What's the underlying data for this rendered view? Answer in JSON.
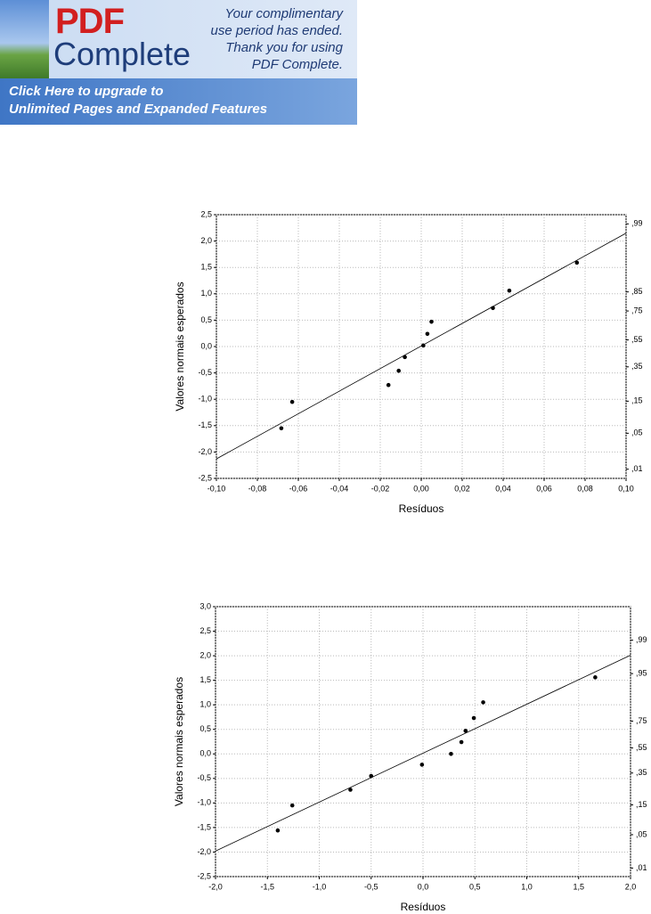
{
  "banner": {
    "logo_top": "PDF",
    "logo_bottom": "Complete",
    "message": [
      "Your complimentary",
      "use period has ended.",
      "Thank you for using",
      "PDF Complete."
    ],
    "link": [
      "Click Here to upgrade to",
      "Unlimited Pages and Expanded Features"
    ]
  },
  "chart_data": [
    {
      "type": "scatter",
      "x_label": "Resíduos",
      "y_label": "Valores normais esperados",
      "grid": true,
      "color": "#000000",
      "x": [
        -0.0683,
        -0.063,
        -0.016,
        -0.011,
        -0.008,
        0.001,
        0.003,
        0.005,
        0.035,
        0.043,
        0.076
      ],
      "values": [
        -1.55,
        -1.05,
        -0.73,
        -0.46,
        -0.2,
        0.02,
        0.24,
        0.47,
        0.73,
        1.06,
        1.59
      ],
      "fit_line": {
        "x": [
          -0.1,
          0.1
        ],
        "values": [
          -2.13,
          2.15
        ]
      },
      "xlim": [
        -0.1,
        0.1
      ],
      "xticks": [
        {
          "value": -0.1,
          "label": "-0,10"
        },
        {
          "value": -0.08,
          "label": "-0,08"
        },
        {
          "value": -0.06,
          "label": "-0,06"
        },
        {
          "value": -0.04,
          "label": "-0,04"
        },
        {
          "value": -0.02,
          "label": "-0,02"
        },
        {
          "value": 0,
          "label": "0,00"
        },
        {
          "value": 0.02,
          "label": "0,02"
        },
        {
          "value": 0.04,
          "label": "0,04"
        },
        {
          "value": 0.06,
          "label": "0,06"
        },
        {
          "value": 0.08,
          "label": "0,08"
        },
        {
          "value": 0.1,
          "label": "0,10"
        }
      ],
      "ylim": [
        -2.5,
        2.5
      ],
      "yticks": [
        {
          "value": 2.5,
          "label": "2,5"
        },
        {
          "value": 2,
          "label": "2,0"
        },
        {
          "value": 1.5,
          "label": "1,5"
        },
        {
          "value": 1,
          "label": "1,0"
        },
        {
          "value": 0.5,
          "label": "0,5"
        },
        {
          "value": 0,
          "label": "0,0"
        },
        {
          "value": -0.5,
          "label": "-0,5"
        },
        {
          "value": -1,
          "label": "-1,0"
        },
        {
          "value": -1.5,
          "label": "-1,5"
        },
        {
          "value": -2,
          "label": "-2,0"
        },
        {
          "value": -2.5,
          "label": "-2,5"
        }
      ],
      "y2scale": "normal-probability",
      "y2lim": [
        0.0062,
        0.9938
      ],
      "y2ticks": [
        {
          "value": 0.99,
          "label": ",99"
        },
        {
          "value": 0.85,
          "label": ",85"
        },
        {
          "value": 0.75,
          "label": ",75"
        },
        {
          "value": 0.55,
          "label": ",55"
        },
        {
          "value": 0.35,
          "label": ",35"
        },
        {
          "value": 0.15,
          "label": ",15"
        },
        {
          "value": 0.05,
          "label": ",05"
        },
        {
          "value": 0.01,
          "label": ",01"
        }
      ]
    },
    {
      "type": "scatter",
      "x_label": "Resíduos",
      "y_label": "Valores normais esperados",
      "grid": true,
      "color": "#000000",
      "x": [
        -1.4,
        -1.26,
        -0.7,
        -0.5,
        -0.01,
        0.27,
        0.37,
        0.41,
        0.49,
        0.58,
        1.66
      ],
      "values": [
        -1.56,
        -1.05,
        -0.73,
        -0.45,
        -0.22,
        0,
        0.24,
        0.47,
        0.73,
        1.05,
        1.56
      ],
      "fit_line": {
        "x": [
          -2,
          2
        ],
        "values": [
          -1.98,
          2.01
        ]
      },
      "xlim": [
        -2,
        2
      ],
      "xticks": [
        {
          "value": -2,
          "label": "-2,0"
        },
        {
          "value": -1.5,
          "label": "-1,5"
        },
        {
          "value": -1,
          "label": "-1,0"
        },
        {
          "value": -0.5,
          "label": "-0,5"
        },
        {
          "value": 0,
          "label": "0,0"
        },
        {
          "value": 0.5,
          "label": "0,5"
        },
        {
          "value": 1,
          "label": "1,0"
        },
        {
          "value": 1.5,
          "label": "1,5"
        },
        {
          "value": 2,
          "label": "2,0"
        }
      ],
      "ylim": [
        -2.5,
        3
      ],
      "yticks": [
        {
          "value": 3,
          "label": "3,0"
        },
        {
          "value": 2.5,
          "label": "2,5"
        },
        {
          "value": 2,
          "label": "2,0"
        },
        {
          "value": 1.5,
          "label": "1,5"
        },
        {
          "value": 1,
          "label": "1,0"
        },
        {
          "value": 0.5,
          "label": "0,5"
        },
        {
          "value": 0,
          "label": "0,0"
        },
        {
          "value": -0.5,
          "label": "-0,5"
        },
        {
          "value": -1,
          "label": "-1,0"
        },
        {
          "value": -1.5,
          "label": "-1,5"
        },
        {
          "value": -2,
          "label": "-2,0"
        },
        {
          "value": -2.5,
          "label": "-2,5"
        }
      ],
      "y2scale": "normal-probability",
      "y2lim": [
        0.0062,
        0.9987
      ],
      "y2ticks": [
        {
          "value": 0.99,
          "label": ",99"
        },
        {
          "value": 0.95,
          "label": ",95"
        },
        {
          "value": 0.75,
          "label": ",75"
        },
        {
          "value": 0.55,
          "label": ",55"
        },
        {
          "value": 0.35,
          "label": ",35"
        },
        {
          "value": 0.15,
          "label": ",15"
        },
        {
          "value": 0.05,
          "label": ",05"
        },
        {
          "value": 0.01,
          "label": ",01"
        }
      ]
    }
  ]
}
